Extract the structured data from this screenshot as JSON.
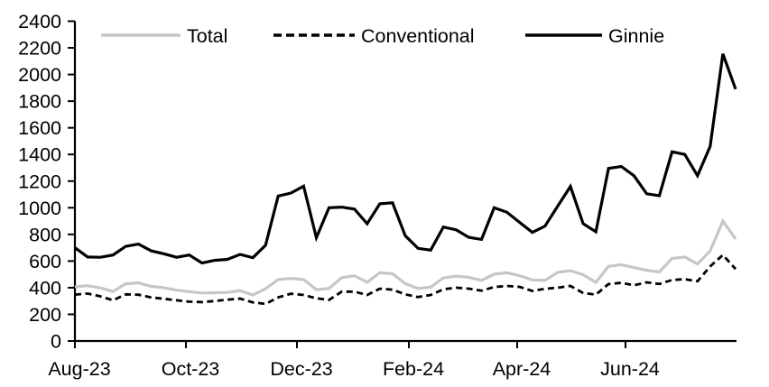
{
  "chart_data": {
    "type": "line",
    "title": "",
    "xlabel": "",
    "ylabel": "",
    "grid": false,
    "legend": {
      "position": "top"
    },
    "x_axis": {
      "tick_labels": [
        "Aug-23",
        "Oct-23",
        "Dec-23",
        "Feb-24",
        "Apr-24",
        "Jun-24"
      ],
      "frequency": "weekly"
    },
    "y_axis": {
      "min": 0,
      "max": 2400,
      "step": 200,
      "tick_labels": [
        "0",
        "200",
        "400",
        "600",
        "800",
        "1000",
        "1200",
        "1400",
        "1600",
        "1800",
        "2000",
        "2200",
        "2400"
      ]
    },
    "series": [
      {
        "name": "Total",
        "color": "#c6c6c6",
        "line_style": "solid",
        "values": [
          407,
          415,
          398,
          372,
          430,
          436,
          410,
          400,
          382,
          370,
          360,
          362,
          364,
          378,
          345,
          393,
          461,
          470,
          461,
          385,
          395,
          475,
          490,
          441,
          512,
          505,
          430,
          395,
          405,
          473,
          487,
          477,
          455,
          502,
          512,
          490,
          458,
          455,
          515,
          528,
          497,
          440,
          560,
          573,
          551,
          530,
          518,
          620,
          630,
          578,
          676,
          900,
          766
        ]
      },
      {
        "name": "Conventional",
        "color": "#000000",
        "line_style": "dashed",
        "values": [
          348,
          356,
          335,
          305,
          350,
          347,
          327,
          317,
          305,
          295,
          292,
          300,
          310,
          318,
          290,
          278,
          327,
          355,
          345,
          320,
          308,
          370,
          370,
          345,
          393,
          385,
          350,
          330,
          345,
          388,
          400,
          393,
          378,
          405,
          413,
          406,
          376,
          392,
          400,
          413,
          360,
          348,
          427,
          437,
          418,
          440,
          428,
          458,
          464,
          448,
          560,
          645,
          540
        ]
      },
      {
        "name": "Ginnie",
        "color": "#000000",
        "line_style": "solid",
        "values": [
          700,
          630,
          628,
          645,
          710,
          727,
          676,
          655,
          628,
          645,
          585,
          605,
          613,
          650,
          625,
          718,
          1088,
          1110,
          1162,
          775,
          1000,
          1005,
          990,
          880,
          1030,
          1037,
          790,
          695,
          682,
          855,
          835,
          778,
          762,
          1000,
          966,
          890,
          815,
          862,
          1012,
          1160,
          880,
          820,
          1295,
          1310,
          1240,
          1105,
          1090,
          1420,
          1400,
          1240,
          1460,
          2155,
          1890
        ]
      }
    ]
  }
}
